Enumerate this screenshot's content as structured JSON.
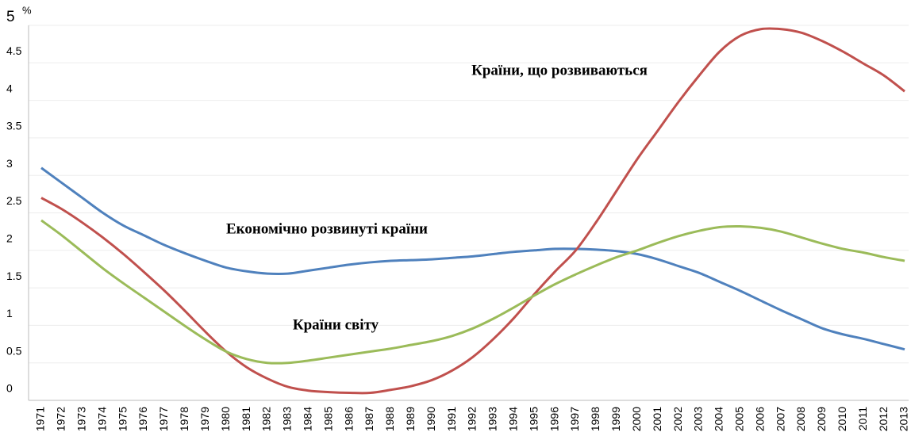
{
  "chart_data": {
    "type": "line",
    "ylabel": "%",
    "categories": [
      "1971",
      "1972",
      "1973",
      "1974",
      "1975",
      "1976",
      "1977",
      "1978",
      "1979",
      "1980",
      "1981",
      "1982",
      "1983",
      "1984",
      "1985",
      "1986",
      "1987",
      "1988",
      "1989",
      "1990",
      "1991",
      "1992",
      "1993",
      "1994",
      "1995",
      "1996",
      "1997",
      "1998",
      "1999",
      "2000",
      "2001",
      "2002",
      "2003",
      "2004",
      "2005",
      "2006",
      "2007",
      "2008",
      "2009",
      "2010",
      "2011",
      "2012",
      "2013"
    ],
    "series": [
      {
        "name": "Економічно розвинуті країни",
        "color": "#4f81bd",
        "values": [
          3.1,
          2.9,
          2.7,
          2.5,
          2.33,
          2.2,
          2.07,
          1.96,
          1.86,
          1.77,
          1.72,
          1.69,
          1.69,
          1.73,
          1.77,
          1.81,
          1.84,
          1.86,
          1.87,
          1.88,
          1.9,
          1.92,
          1.95,
          1.98,
          2.0,
          2.02,
          2.02,
          2.01,
          1.99,
          1.95,
          1.88,
          1.79,
          1.7,
          1.58,
          1.46,
          1.33,
          1.2,
          1.08,
          0.96,
          0.88,
          0.82,
          0.75,
          0.68
        ]
      },
      {
        "name": "Країни, що розвиваються",
        "color": "#c0504d",
        "values": [
          2.7,
          2.55,
          2.37,
          2.17,
          1.95,
          1.71,
          1.46,
          1.19,
          0.91,
          0.65,
          0.44,
          0.29,
          0.18,
          0.13,
          0.11,
          0.1,
          0.1,
          0.14,
          0.19,
          0.27,
          0.4,
          0.58,
          0.82,
          1.1,
          1.42,
          1.72,
          2.0,
          2.38,
          2.8,
          3.22,
          3.6,
          3.98,
          4.33,
          4.65,
          4.86,
          4.95,
          4.95,
          4.9,
          4.79,
          4.65,
          4.49,
          4.33,
          4.12
        ]
      },
      {
        "name": "Країни світу",
        "color": "#9bbb59",
        "values": [
          2.4,
          2.2,
          1.98,
          1.76,
          1.56,
          1.37,
          1.18,
          0.99,
          0.81,
          0.65,
          0.55,
          0.5,
          0.5,
          0.53,
          0.57,
          0.61,
          0.65,
          0.69,
          0.74,
          0.79,
          0.86,
          0.96,
          1.09,
          1.24,
          1.4,
          1.55,
          1.68,
          1.8,
          1.91,
          2.0,
          2.1,
          2.19,
          2.26,
          2.31,
          2.32,
          2.3,
          2.25,
          2.17,
          2.09,
          2.02,
          1.97,
          1.91,
          1.86
        ]
      }
    ],
    "ylim": [
      0,
      5
    ],
    "yticks": [
      0,
      0.5,
      1,
      1.5,
      2,
      2.5,
      3,
      3.5,
      4,
      4.5,
      5
    ],
    "grid": true
  }
}
